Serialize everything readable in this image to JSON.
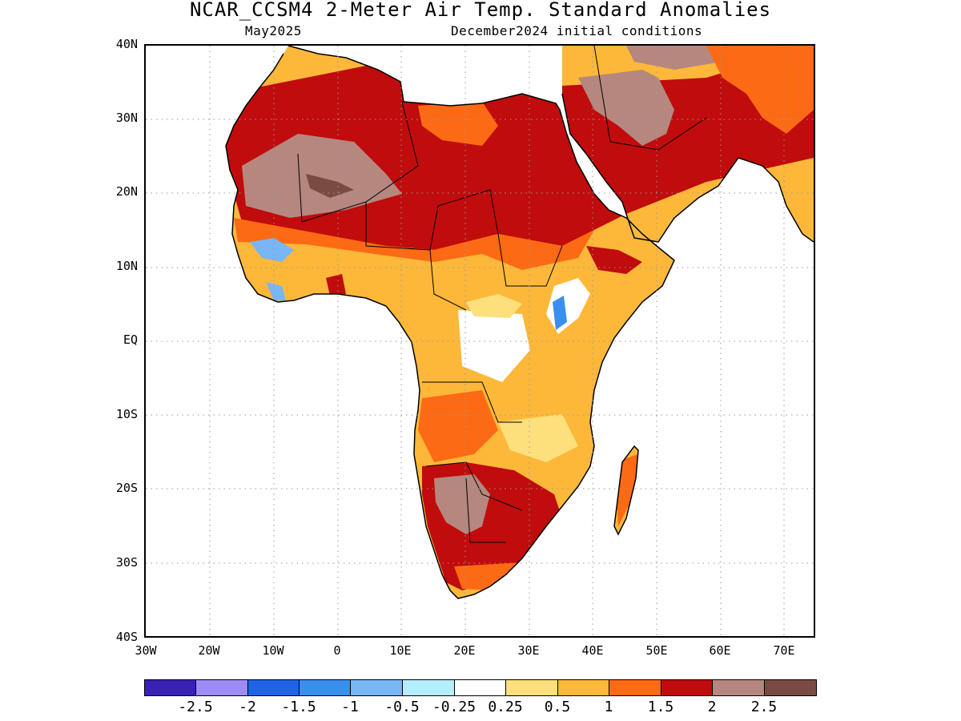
{
  "title": "NCAR_CCSM4 2-Meter Air Temp. Standard Anomalies",
  "subtitle_left": "May2025",
  "subtitle_right": "December2024 initial conditions",
  "y_axis": {
    "labels": [
      "40N",
      "30N",
      "20N",
      "10N",
      "EQ",
      "10S",
      "20S",
      "30S",
      "40S"
    ]
  },
  "x_axis": {
    "labels": [
      "30W",
      "20W",
      "10W",
      "0",
      "10E",
      "20E",
      "30E",
      "40E",
      "50E",
      "60E",
      "70E"
    ]
  },
  "map": {
    "lon_range": [
      -30,
      75
    ],
    "lat_range": [
      -40,
      40
    ],
    "grid": "dotted"
  },
  "colorbar": {
    "colors": [
      "#3a21b4",
      "#9e8cf5",
      "#1f64e6",
      "#3a8fee",
      "#78b6f5",
      "#b5eefb",
      "#ffffff",
      "#fde07c",
      "#fdb83a",
      "#fd6a14",
      "#c00c0c",
      "#b6877e",
      "#7a4b42"
    ],
    "labels": [
      "-2.5",
      "-2",
      "-1.5",
      "-1",
      "-0.5",
      "-0.25",
      "0.25",
      "0.5",
      "1",
      "1.5",
      "2",
      "2.5"
    ]
  },
  "colors": {
    "land_outline": "#000000",
    "ocean": "#ffffff",
    "grid": "#999999"
  }
}
